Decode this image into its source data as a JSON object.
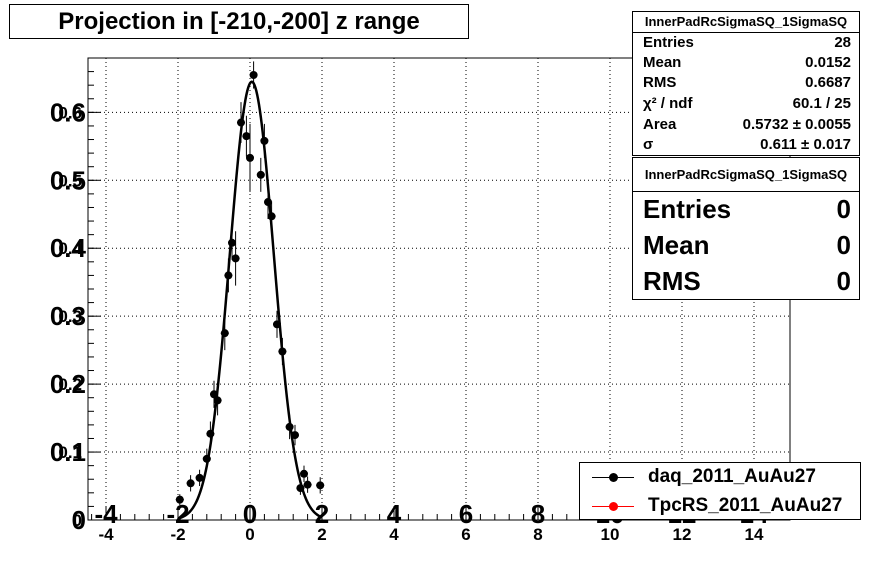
{
  "chart_data": {
    "type": "scatter",
    "title": "Projection in [-210,-200] z range",
    "xlabel": "",
    "ylabel": "",
    "xlim": [
      -4.5,
      15
    ],
    "ylim": [
      0,
      0.68
    ],
    "x_ticks": [
      "-4",
      "-2",
      "0",
      "2",
      "4",
      "6",
      "8",
      "10",
      "12",
      "14"
    ],
    "x_tick_values": [
      -4,
      -2,
      0,
      2,
      4,
      6,
      8,
      10,
      12,
      14
    ],
    "y_ticks": [
      "0",
      "0.1",
      "0.2",
      "0.3",
      "0.4",
      "0.5",
      "0.6"
    ],
    "y_tick_values": [
      0,
      0.1,
      0.2,
      0.3,
      0.4,
      0.5,
      0.6
    ],
    "overlay_y_ticks": [
      "0",
      "0.1",
      "0.2",
      "0.3",
      "0.4",
      "0.5",
      "0.6"
    ],
    "overlay_x_ticks": [
      "-4",
      "-2",
      "0",
      "2",
      "4",
      "6",
      "8",
      "10",
      "12",
      "14"
    ],
    "grid": true,
    "legend_position": "bottom-right",
    "series": [
      {
        "name": "daq_2011_AuAu27",
        "color": "#000000",
        "points": [
          {
            "x": -1.95,
            "y": 0.03,
            "err": 0.008
          },
          {
            "x": -1.65,
            "y": 0.054,
            "err": 0.012
          },
          {
            "x": -1.4,
            "y": 0.062,
            "err": 0.012
          },
          {
            "x": -1.2,
            "y": 0.09,
            "err": 0.015
          },
          {
            "x": -1.1,
            "y": 0.127,
            "err": 0.018
          },
          {
            "x": -1.0,
            "y": 0.185,
            "err": 0.02
          },
          {
            "x": -0.9,
            "y": 0.176,
            "err": 0.022
          },
          {
            "x": -0.7,
            "y": 0.275,
            "err": 0.025
          },
          {
            "x": -0.6,
            "y": 0.36,
            "err": 0.025
          },
          {
            "x": -0.5,
            "y": 0.408,
            "err": 0.025
          },
          {
            "x": -0.4,
            "y": 0.385,
            "err": 0.04
          },
          {
            "x": -0.25,
            "y": 0.585,
            "err": 0.03
          },
          {
            "x": -0.1,
            "y": 0.565,
            "err": 0.03
          },
          {
            "x": 0.0,
            "y": 0.533,
            "err": 0.05
          },
          {
            "x": 0.1,
            "y": 0.655,
            "err": 0.02
          },
          {
            "x": 0.3,
            "y": 0.508,
            "err": 0.025
          },
          {
            "x": 0.4,
            "y": 0.558,
            "err": 0.025
          },
          {
            "x": 0.5,
            "y": 0.468,
            "err": 0.025
          },
          {
            "x": 0.6,
            "y": 0.447,
            "err": 0.022
          },
          {
            "x": 0.75,
            "y": 0.288,
            "err": 0.02
          },
          {
            "x": 0.9,
            "y": 0.248,
            "err": 0.02
          },
          {
            "x": 1.1,
            "y": 0.137,
            "err": 0.018
          },
          {
            "x": 1.25,
            "y": 0.125,
            "err": 0.015
          },
          {
            "x": 1.4,
            "y": 0.047,
            "err": 0.01
          },
          {
            "x": 1.5,
            "y": 0.068,
            "err": 0.012
          },
          {
            "x": 1.6,
            "y": 0.052,
            "err": 0.012
          },
          {
            "x": 1.95,
            "y": 0.051,
            "err": 0.012
          }
        ]
      },
      {
        "name": "TpcRS_2011_AuAu27",
        "color": "#ff0000",
        "points": []
      }
    ],
    "fit": {
      "type": "gaussian",
      "amplitude": 0.645,
      "mean": 0.05,
      "sigma": 0.611,
      "x_range": [
        -2.0,
        2.0
      ]
    }
  },
  "title_box": {
    "text": "Projection in [-210,-200] z range"
  },
  "stats_box_1": {
    "title": "InnerPadRcSigmaSQ_1SigmaSQ",
    "rows": [
      {
        "key": "Entries",
        "value": "28"
      },
      {
        "key": "Mean",
        "value": "0.0152"
      },
      {
        "key": "RMS",
        "value": "0.6687"
      },
      {
        "key": "χ² / ndf",
        "value": "60.1 / 25"
      },
      {
        "key": "Area",
        "value": "0.5732 ± 0.0055"
      },
      {
        "key": "σ",
        "value": "0.611 ± 0.017"
      }
    ]
  },
  "stats_box_2": {
    "title": "InnerPadRcSigmaSQ_1SigmaSQ",
    "rows": [
      {
        "key": "Entries",
        "value": "0"
      },
      {
        "key": "Mean",
        "value": "0"
      },
      {
        "key": "RMS",
        "value": "0"
      }
    ]
  },
  "legend": {
    "items": [
      {
        "label": "daq_2011_AuAu27",
        "color": "#000000"
      },
      {
        "label": "TpcRS_2011_AuAu27",
        "color": "#ff0000"
      }
    ]
  }
}
